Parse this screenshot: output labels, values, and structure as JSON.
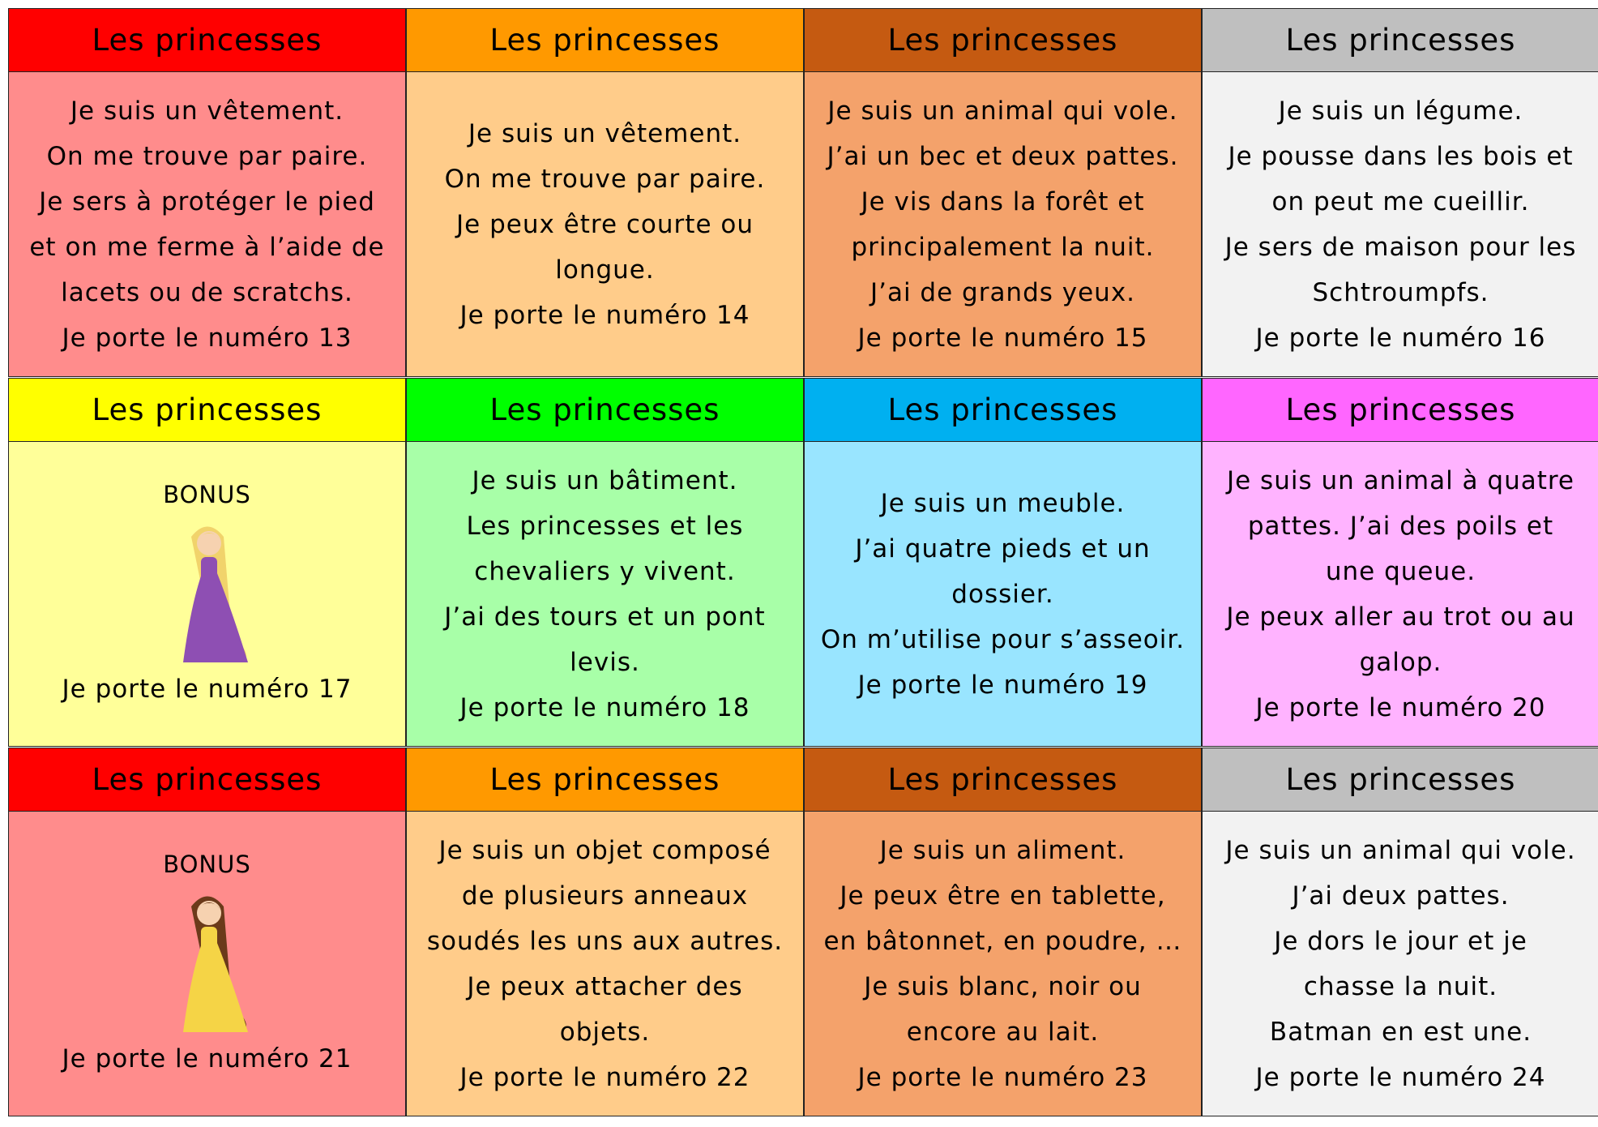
{
  "cards": [
    {
      "header": "Les princesses",
      "lines": [
        "Je suis un vêtement.",
        "On me trouve par paire.",
        "Je sers à protéger le pied",
        "et on me ferme à l’aide de",
        "lacets ou de scratchs.",
        "Je porte le numéro 13"
      ]
    },
    {
      "header": "Les princesses",
      "lines": [
        "Je suis un vêtement.",
        "On me trouve par paire.",
        "Je peux être courte ou",
        "longue.",
        "Je porte le numéro 14"
      ]
    },
    {
      "header": "Les princesses",
      "lines": [
        "Je suis un animal qui vole.",
        "J’ai un bec et deux pattes.",
        "Je vis dans la forêt et",
        "principalement la nuit.",
        "J’ai de grands yeux.",
        "Je porte le numéro 15"
      ]
    },
    {
      "header": "Les princesses",
      "lines": [
        "Je suis un légume.",
        "Je pousse dans les bois et",
        "on peut me cueillir.",
        "Je sers de maison pour les",
        "Schtroumpfs.",
        "Je porte le numéro 16"
      ]
    },
    {
      "header": "Les princesses",
      "bonus": "BONUS",
      "lines": [
        "Je porte le numéro 17"
      ]
    },
    {
      "header": "Les princesses",
      "lines": [
        "Je suis un bâtiment.",
        "Les princesses et les",
        "chevaliers y vivent.",
        "J’ai des tours et un pont",
        "levis.",
        "Je porte le numéro 18"
      ]
    },
    {
      "header": "Les princesses",
      "lines": [
        "Je suis un meuble.",
        "J’ai quatre pieds et un",
        "dossier.",
        "On m’utilise pour s’asseoir.",
        "Je porte le numéro 19"
      ]
    },
    {
      "header": "Les princesses",
      "lines": [
        "Je suis un animal à quatre",
        "pattes. J’ai des poils et",
        "une queue.",
        "Je peux aller au trot ou au",
        "galop.",
        "Je porte le numéro 20"
      ]
    },
    {
      "header": "Les princesses",
      "bonus": "BONUS",
      "lines": [
        "Je porte le numéro 21"
      ]
    },
    {
      "header": "Les princesses",
      "lines": [
        "Je suis un objet composé",
        "de plusieurs anneaux",
        "soudés les uns aux autres.",
        "Je peux attacher des",
        "objets.",
        "Je porte le numéro 22"
      ]
    },
    {
      "header": "Les princesses",
      "lines": [
        "Je suis un aliment.",
        "Je peux être en tablette,",
        "en bâtonnet, en poudre, …",
        "Je suis blanc, noir ou",
        "encore au lait.",
        "Je porte le numéro 23"
      ]
    },
    {
      "header": "Les princesses",
      "lines": [
        "Je suis un animal qui vole.",
        "J’ai deux pattes.",
        "Je dors le jour et je",
        "chasse la nuit.",
        "Batman en est une.",
        "Je porte le numéro 24"
      ]
    }
  ]
}
